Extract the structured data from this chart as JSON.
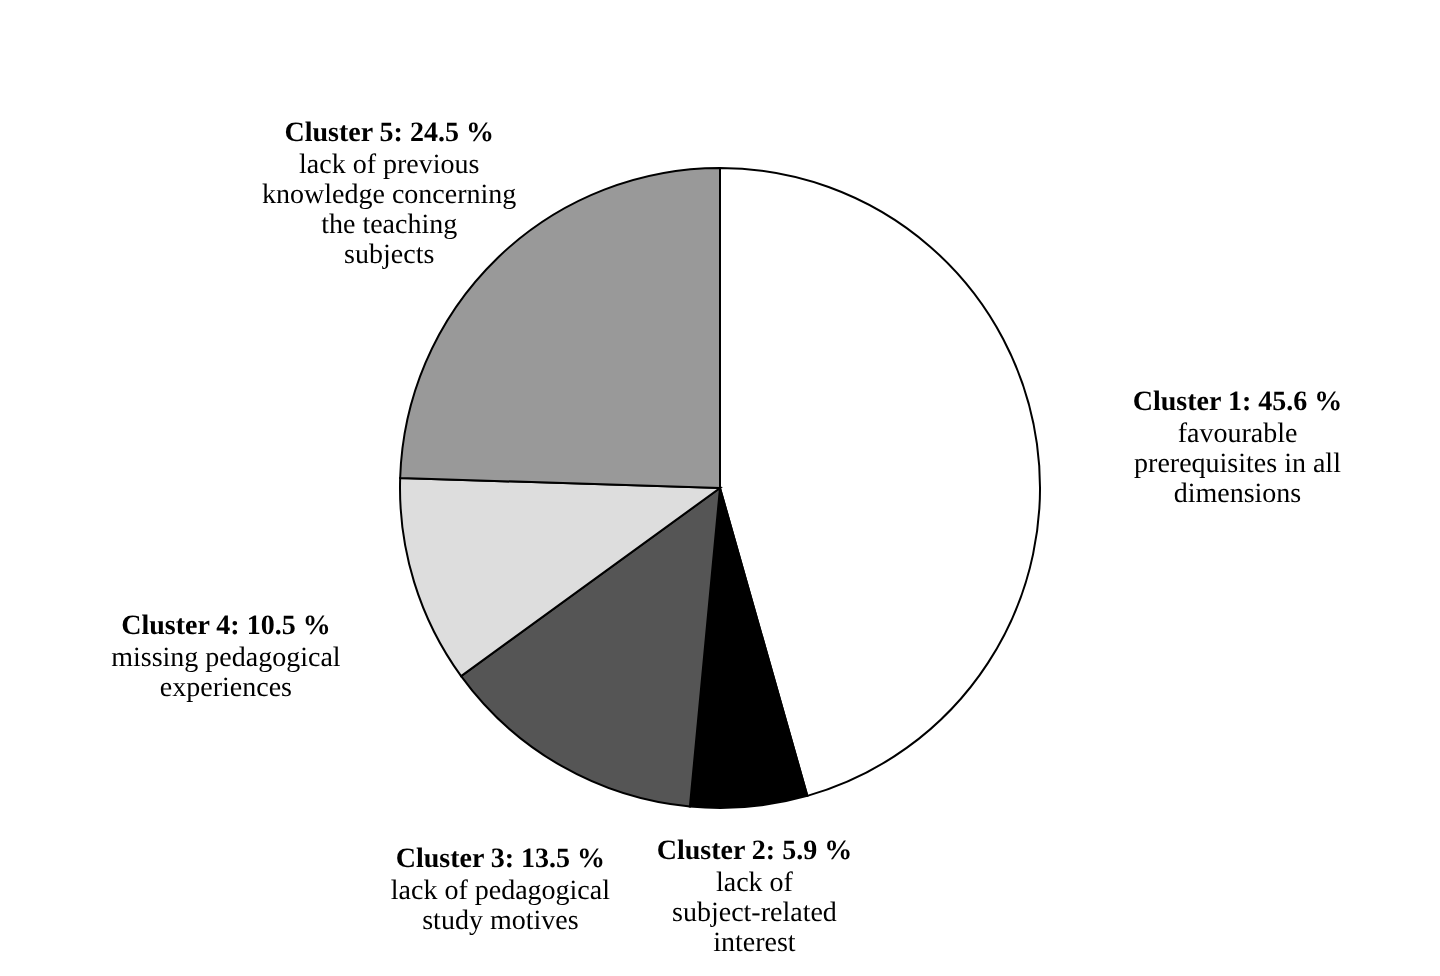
{
  "chart_data": {
    "type": "pie",
    "categories": [
      "favourable prerequisites in all dimensions",
      "lack of subject-related interest",
      "lack of pedagogical study motives",
      "missing pedagogical experiences",
      "lack of previous knowledge concerning the teaching subjects"
    ],
    "values": [
      45.6,
      5.9,
      13.5,
      10.5,
      24.5
    ],
    "colors": [
      "#ffffff",
      "#000000",
      "#555555",
      "#dddddd",
      "#999999"
    ],
    "value_labels": [
      "Cluster 1: 45.6 %",
      "Cluster 2: 5.9 %",
      "Cluster 3: 13.5 %",
      "Cluster 4: 10.5 %",
      "Cluster 5: 24.5 %"
    ]
  }
}
